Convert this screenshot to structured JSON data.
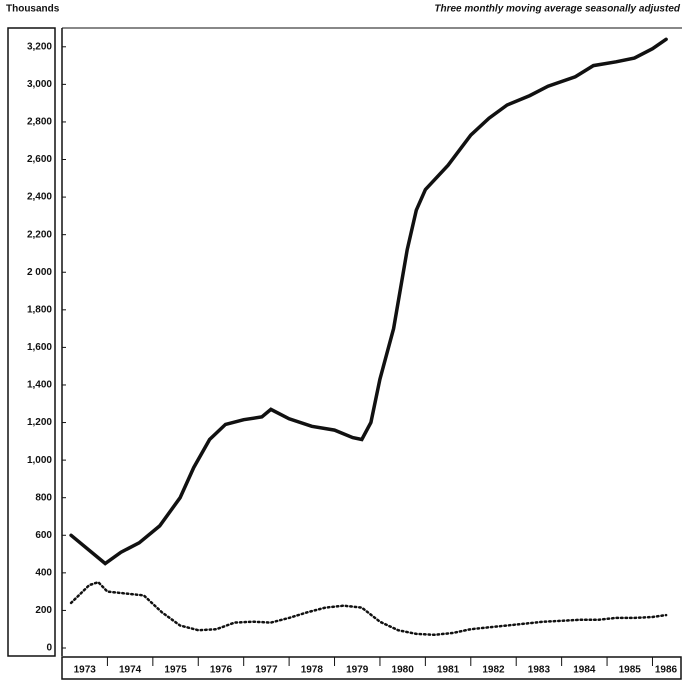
{
  "chart_data": {
    "type": "line",
    "title": "Thousands",
    "subtitle": "Three monthly moving average seasonally adjusted",
    "series": [
      {
        "name": null,
        "color": "#111111",
        "style": "solid",
        "x": [
          1973.2,
          1973.95,
          1974.3,
          1974.7,
          1975.15,
          1975.6,
          1975.9,
          1976.25,
          1976.6,
          1977.0,
          1977.4,
          1977.6,
          1978.0,
          1978.5,
          1979.0,
          1979.4,
          1979.6,
          1979.8,
          1980.0,
          1980.3,
          1980.6,
          1980.8,
          1981.0,
          1981.5,
          1982.0,
          1982.4,
          1982.8,
          1983.3,
          1983.7,
          1984.3,
          1984.7,
          1985.2,
          1985.6,
          1986.0,
          1986.3
        ],
        "values": [
          600,
          450,
          510,
          560,
          650,
          800,
          960,
          1110,
          1190,
          1215,
          1230,
          1270,
          1220,
          1180,
          1160,
          1120,
          1110,
          1200,
          1430,
          1700,
          2120,
          2330,
          2440,
          2570,
          2730,
          2820,
          2890,
          2940,
          2990,
          3040,
          3100,
          3120,
          3140,
          3190,
          3240
        ]
      },
      {
        "name": null,
        "color": "#111111",
        "style": "dotted",
        "x": [
          1973.2,
          1973.6,
          1973.8,
          1974.0,
          1974.4,
          1974.8,
          1975.2,
          1975.6,
          1976.0,
          1976.4,
          1976.8,
          1977.2,
          1977.6,
          1978.0,
          1978.4,
          1978.8,
          1979.2,
          1979.6,
          1980.0,
          1980.4,
          1980.8,
          1981.2,
          1981.6,
          1982.0,
          1982.4,
          1982.8,
          1983.2,
          1983.6,
          1984.0,
          1984.4,
          1984.8,
          1985.2,
          1985.6,
          1986.0,
          1986.3
        ],
        "values": [
          240,
          335,
          350,
          300,
          290,
          280,
          190,
          120,
          95,
          100,
          135,
          140,
          135,
          160,
          190,
          215,
          225,
          215,
          140,
          95,
          75,
          70,
          80,
          100,
          110,
          120,
          130,
          140,
          145,
          150,
          150,
          160,
          160,
          165,
          175
        ]
      }
    ],
    "xlim": [
      1973,
      1986.65
    ],
    "xticks": [
      1973,
      1974,
      1975,
      1976,
      1977,
      1978,
      1979,
      1980,
      1981,
      1982,
      1983,
      1984,
      1985,
      1986
    ],
    "ylim": [
      0,
      3300
    ],
    "yticks": [
      0,
      200,
      400,
      600,
      800,
      {
        "value": 1000,
        "label": "1,000"
      },
      {
        "value": 1200,
        "label": "1,200"
      },
      {
        "value": 1400,
        "label": "1,400"
      },
      {
        "value": 1600,
        "label": "1,600"
      },
      {
        "value": 1800,
        "label": "1,800"
      },
      {
        "value": 2000,
        "label": "2 000"
      },
      {
        "value": 2200,
        "label": "2,200"
      },
      {
        "value": 2400,
        "label": "2,400"
      },
      {
        "value": 2600,
        "label": "2,600"
      },
      {
        "value": 2800,
        "label": "2,800"
      },
      {
        "value": 3000,
        "label": "3,000"
      },
      {
        "value": 3200,
        "label": "3,200"
      }
    ]
  }
}
